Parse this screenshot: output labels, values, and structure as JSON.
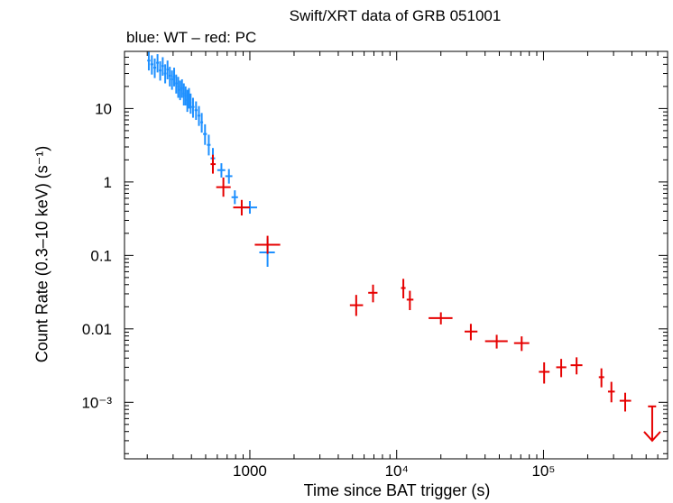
{
  "chart_data": {
    "type": "scatter",
    "title": "Swift/XRT data of GRB 051001",
    "subtitle": "blue: WT – red: PC",
    "xlabel": "Time since BAT trigger (s)",
    "ylabel": "Count Rate (0.3–10 keV) (s⁻¹)",
    "x_scale": "log",
    "y_scale": "log",
    "xlim": [
      140,
      700000
    ],
    "ylim": [
      0.00017,
      60
    ],
    "x_ticks": [
      {
        "value": 1000,
        "label": "1000"
      },
      {
        "value": 10000,
        "label": "10⁴"
      },
      {
        "value": 100000,
        "label": "10⁵"
      }
    ],
    "y_ticks": [
      {
        "value": 10,
        "label": "10"
      },
      {
        "value": 1,
        "label": "1"
      },
      {
        "value": 0.1,
        "label": "0.1"
      },
      {
        "value": 0.01,
        "label": "0.01"
      },
      {
        "value": 0.001,
        "label": "10⁻³"
      }
    ],
    "series": [
      {
        "name": "WT",
        "color": "#1e90ff",
        "points": [
          {
            "x": 205,
            "y": 45,
            "xerr": [
              5,
              5
            ],
            "yerr": [
              12,
              14
            ]
          },
          {
            "x": 215,
            "y": 40,
            "xerr": [
              5,
              5
            ],
            "yerr": [
              11,
              13
            ]
          },
          {
            "x": 225,
            "y": 36,
            "xerr": [
              5,
              5
            ],
            "yerr": [
              10,
              12
            ]
          },
          {
            "x": 235,
            "y": 42,
            "xerr": [
              5,
              5
            ],
            "yerr": [
              11,
              13
            ]
          },
          {
            "x": 245,
            "y": 33,
            "xerr": [
              5,
              5
            ],
            "yerr": [
              9,
              11
            ]
          },
          {
            "x": 255,
            "y": 38,
            "xerr": [
              5,
              5
            ],
            "yerr": [
              10,
              12
            ]
          },
          {
            "x": 265,
            "y": 30,
            "xerr": [
              5,
              5
            ],
            "yerr": [
              8,
              10
            ]
          },
          {
            "x": 275,
            "y": 34,
            "xerr": [
              5,
              5
            ],
            "yerr": [
              9,
              11
            ]
          },
          {
            "x": 285,
            "y": 28,
            "xerr": [
              5,
              5
            ],
            "yerr": [
              8,
              9
            ]
          },
          {
            "x": 295,
            "y": 25,
            "xerr": [
              5,
              5
            ],
            "yerr": [
              7,
              8
            ]
          },
          {
            "x": 305,
            "y": 27,
            "xerr": [
              5,
              5
            ],
            "yerr": [
              7,
              9
            ]
          },
          {
            "x": 315,
            "y": 22,
            "xerr": [
              5,
              5
            ],
            "yerr": [
              6,
              7
            ]
          },
          {
            "x": 325,
            "y": 20,
            "xerr": [
              5,
              5
            ],
            "yerr": [
              6,
              7
            ]
          },
          {
            "x": 335,
            "y": 18,
            "xerr": [
              5,
              5
            ],
            "yerr": [
              5,
              6
            ]
          },
          {
            "x": 345,
            "y": 19,
            "xerr": [
              5,
              5
            ],
            "yerr": [
              5,
              6
            ]
          },
          {
            "x": 355,
            "y": 16,
            "xerr": [
              5,
              5
            ],
            "yerr": [
              5,
              6
            ]
          },
          {
            "x": 365,
            "y": 15,
            "xerr": [
              5,
              5
            ],
            "yerr": [
              4,
              5
            ]
          },
          {
            "x": 375,
            "y": 13,
            "xerr": [
              5,
              5
            ],
            "yerr": [
              4,
              5
            ]
          },
          {
            "x": 385,
            "y": 14,
            "xerr": [
              5,
              5
            ],
            "yerr": [
              4,
              5
            ]
          },
          {
            "x": 395,
            "y": 12,
            "xerr": [
              5,
              5
            ],
            "yerr": [
              3.5,
              4
            ]
          },
          {
            "x": 410,
            "y": 10.5,
            "xerr": [
              10,
              10
            ],
            "yerr": [
              3,
              3.5
            ]
          },
          {
            "x": 430,
            "y": 9.5,
            "xerr": [
              10,
              10
            ],
            "yerr": [
              2.5,
              3
            ]
          },
          {
            "x": 450,
            "y": 8,
            "xerr": [
              10,
              10
            ],
            "yerr": [
              2.2,
              2.8
            ]
          },
          {
            "x": 470,
            "y": 6.5,
            "xerr": [
              10,
              10
            ],
            "yerr": [
              1.8,
              2.2
            ]
          },
          {
            "x": 495,
            "y": 4.5,
            "xerr": [
              15,
              15
            ],
            "yerr": [
              1.3,
              1.6
            ]
          },
          {
            "x": 525,
            "y": 3.2,
            "xerr": [
              15,
              15
            ],
            "yerr": [
              0.9,
              1.2
            ]
          },
          {
            "x": 560,
            "y": 2.1,
            "xerr": [
              20,
              20
            ],
            "yerr": [
              0.6,
              0.8
            ]
          },
          {
            "x": 640,
            "y": 1.45,
            "xerr": [
              40,
              40
            ],
            "yerr": [
              0.3,
              0.35
            ]
          },
          {
            "x": 720,
            "y": 1.2,
            "xerr": [
              40,
              40
            ],
            "yerr": [
              0.25,
              0.3
            ]
          },
          {
            "x": 790,
            "y": 0.62,
            "xerr": [
              40,
              40
            ],
            "yerr": [
              0.12,
              0.15
            ]
          },
          {
            "x": 1000,
            "y": 0.45,
            "xerr": [
              110,
              120
            ],
            "yerr": [
              0.08,
              0.1
            ]
          },
          {
            "x": 1320,
            "y": 0.11,
            "xerr": [
              160,
              160
            ],
            "yerr": [
              0.04,
              0.06
            ]
          }
        ]
      },
      {
        "name": "PC",
        "color": "#e60000",
        "points": [
          {
            "x": 560,
            "y": 1.75,
            "xerr": [
              20,
              25
            ],
            "yerr": [
              0.45,
              0.6
            ]
          },
          {
            "x": 660,
            "y": 0.85,
            "xerr": [
              70,
              80
            ],
            "yerr": [
              0.22,
              0.3
            ]
          },
          {
            "x": 880,
            "y": 0.45,
            "xerr": [
              110,
              120
            ],
            "yerr": [
              0.1,
              0.12
            ]
          },
          {
            "x": 1320,
            "y": 0.14,
            "xerr": [
              240,
              290
            ],
            "yerr": [
              0.035,
              0.045
            ]
          },
          {
            "x": 5300,
            "y": 0.021,
            "xerr": [
              500,
              600
            ],
            "yerr": [
              0.006,
              0.008
            ]
          },
          {
            "x": 6900,
            "y": 0.031,
            "xerr": [
              500,
              500
            ],
            "yerr": [
              0.008,
              0.009
            ]
          },
          {
            "x": 11100,
            "y": 0.036,
            "xerr": [
              400,
              400
            ],
            "yerr": [
              0.01,
              0.012
            ]
          },
          {
            "x": 12300,
            "y": 0.025,
            "xerr": [
              600,
              700
            ],
            "yerr": [
              0.007,
              0.008
            ]
          },
          {
            "x": 20000,
            "y": 0.014,
            "xerr": [
              3500,
              4000
            ],
            "yerr": [
              0.0025,
              0.0028
            ]
          },
          {
            "x": 32000,
            "y": 0.0092,
            "xerr": [
              3000,
              3500
            ],
            "yerr": [
              0.0022,
              0.0025
            ]
          },
          {
            "x": 48000,
            "y": 0.0068,
            "xerr": [
              8000,
              9000
            ],
            "yerr": [
              0.0014,
              0.0015
            ]
          },
          {
            "x": 71000,
            "y": 0.0064,
            "xerr": [
              8000,
              9000
            ],
            "yerr": [
              0.0014,
              0.0015
            ]
          },
          {
            "x": 101000,
            "y": 0.0026,
            "xerr": [
              8000,
              9000
            ],
            "yerr": [
              0.0008,
              0.0009
            ]
          },
          {
            "x": 132000,
            "y": 0.003,
            "xerr": [
              10000,
              11000
            ],
            "yerr": [
              0.0008,
              0.0009
            ]
          },
          {
            "x": 168000,
            "y": 0.0032,
            "xerr": [
              15000,
              16000
            ],
            "yerr": [
              0.0008,
              0.0009
            ]
          },
          {
            "x": 248000,
            "y": 0.0022,
            "xerr": [
              10000,
              11000
            ],
            "yerr": [
              0.0006,
              0.0007
            ]
          },
          {
            "x": 290000,
            "y": 0.0014,
            "xerr": [
              15000,
              16000
            ],
            "yerr": [
              0.0004,
              0.0005
            ]
          },
          {
            "x": 360000,
            "y": 0.00105,
            "xerr": [
              30000,
              35000
            ],
            "yerr": [
              0.0003,
              0.0003
            ]
          }
        ],
        "upper_limits": [
          {
            "x": 550000,
            "y": 0.00088,
            "xerr": [
              35000,
              35000
            ],
            "arrow_to": 0.0003
          }
        ]
      }
    ],
    "grid": false,
    "legend": "none"
  }
}
